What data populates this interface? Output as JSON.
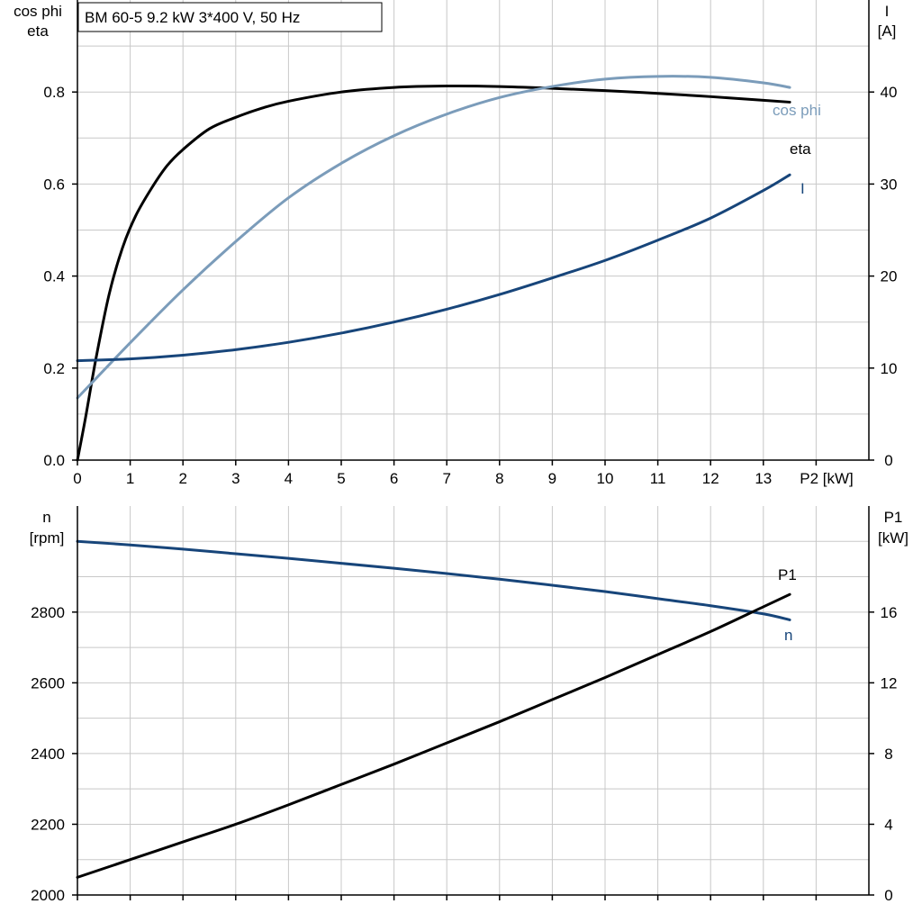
{
  "chart_data": [
    {
      "type": "line",
      "title": "BM 60-5   9.2 kW   3*400 V, 50 Hz",
      "xlabel": "P2 [kW]",
      "xlim": [
        0,
        15
      ],
      "xticks": [
        0,
        1,
        2,
        3,
        4,
        5,
        6,
        7,
        8,
        9,
        10,
        11,
        12,
        13
      ],
      "ylabel_left": [
        "cos phi",
        "eta"
      ],
      "ylim_left": [
        0,
        1.0
      ],
      "yticks_left": [
        0.0,
        0.2,
        0.4,
        0.6,
        0.8
      ],
      "ylabel_right": [
        "I",
        "[A]"
      ],
      "ylim_right": [
        0,
        50
      ],
      "yticks_right": [
        0,
        10,
        20,
        30,
        40
      ],
      "grid": true,
      "series": [
        {
          "name": "eta",
          "axis": "left",
          "color": "#000000",
          "x": [
            0,
            0.15,
            0.35,
            0.6,
            0.85,
            1.1,
            1.4,
            1.7,
            2.0,
            2.5,
            3.0,
            3.5,
            4.0,
            5.0,
            6.0,
            7.0,
            8.0,
            9.0,
            10.0,
            11.0,
            12.0,
            13.0,
            13.5
          ],
          "y": [
            0.0,
            0.09,
            0.22,
            0.36,
            0.46,
            0.53,
            0.59,
            0.64,
            0.675,
            0.72,
            0.745,
            0.765,
            0.78,
            0.8,
            0.81,
            0.813,
            0.812,
            0.808,
            0.803,
            0.797,
            0.79,
            0.782,
            0.778
          ]
        },
        {
          "name": "cos phi",
          "axis": "left",
          "color": "#7b9cba",
          "x": [
            0,
            1,
            2,
            3,
            4,
            5,
            6,
            7,
            8,
            9,
            10,
            11,
            12,
            13,
            13.5
          ],
          "y": [
            0.135,
            0.255,
            0.37,
            0.475,
            0.57,
            0.645,
            0.705,
            0.752,
            0.788,
            0.812,
            0.828,
            0.834,
            0.832,
            0.82,
            0.81
          ]
        },
        {
          "name": "I",
          "axis": "right",
          "color": "#17457a",
          "x": [
            0,
            1,
            2,
            3,
            4,
            5,
            6,
            7,
            8,
            9,
            10,
            11,
            12,
            13,
            13.5
          ],
          "y": [
            10.8,
            11.0,
            11.4,
            12.0,
            12.8,
            13.8,
            15.0,
            16.4,
            18.0,
            19.8,
            21.7,
            23.9,
            26.3,
            29.3,
            31.0
          ]
        }
      ],
      "labels": [
        {
          "text": "cos phi",
          "series": "cos phi"
        },
        {
          "text": "eta",
          "series": "eta"
        },
        {
          "text": "I",
          "series": "I"
        }
      ]
    },
    {
      "type": "line",
      "xlim": [
        0,
        15
      ],
      "ylabel_left": [
        "n",
        "[rpm]"
      ],
      "ylim_left": [
        2000,
        3100
      ],
      "yticks_left": [
        2000,
        2200,
        2400,
        2600,
        2800
      ],
      "ylabel_right": [
        "P1",
        "[kW]"
      ],
      "ylim_right": [
        0,
        22
      ],
      "yticks_right": [
        0,
        4,
        8,
        12,
        16
      ],
      "grid": true,
      "series": [
        {
          "name": "n",
          "axis": "left",
          "color": "#17457a",
          "x": [
            0,
            1,
            2,
            3,
            4,
            5,
            6,
            7,
            8,
            9,
            10,
            11,
            12,
            13,
            13.5
          ],
          "y": [
            3000,
            2990,
            2978,
            2965,
            2952,
            2938,
            2924,
            2909,
            2893,
            2876,
            2858,
            2838,
            2818,
            2795,
            2778
          ]
        },
        {
          "name": "P1",
          "axis": "right",
          "color": "#000000",
          "x": [
            0,
            1,
            2,
            3,
            4,
            5,
            6,
            7,
            8,
            9,
            10,
            11,
            12,
            13,
            13.5
          ],
          "y": [
            1.0,
            2.0,
            3.0,
            4.0,
            5.1,
            6.25,
            7.4,
            8.6,
            9.8,
            11.05,
            12.3,
            13.6,
            14.9,
            16.3,
            17.0
          ]
        }
      ],
      "labels": [
        {
          "text": "P1",
          "series": "P1"
        },
        {
          "text": "n",
          "series": "n"
        }
      ]
    }
  ]
}
